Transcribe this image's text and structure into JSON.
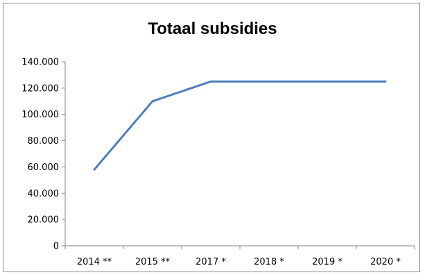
{
  "chart_data": {
    "type": "line",
    "title": "Totaal subsidies",
    "categories": [
      "2014 **",
      "2015 **",
      "2017 *",
      "2018 *",
      "2019 *",
      "2020 *"
    ],
    "series": [
      {
        "values": [
          58000,
          110000,
          125000,
          125000,
          125000,
          125000
        ],
        "color": "#4a7ebb"
      }
    ],
    "ylim": [
      0,
      140000
    ],
    "yticks": [
      "0",
      "20.000",
      "40.000",
      "60.000",
      "80.000",
      "100.000",
      "120.000",
      "140.000"
    ],
    "ytick_values": [
      0,
      20000,
      40000,
      60000,
      80000,
      100000,
      120000,
      140000
    ],
    "grid": false,
    "legend": "none"
  }
}
